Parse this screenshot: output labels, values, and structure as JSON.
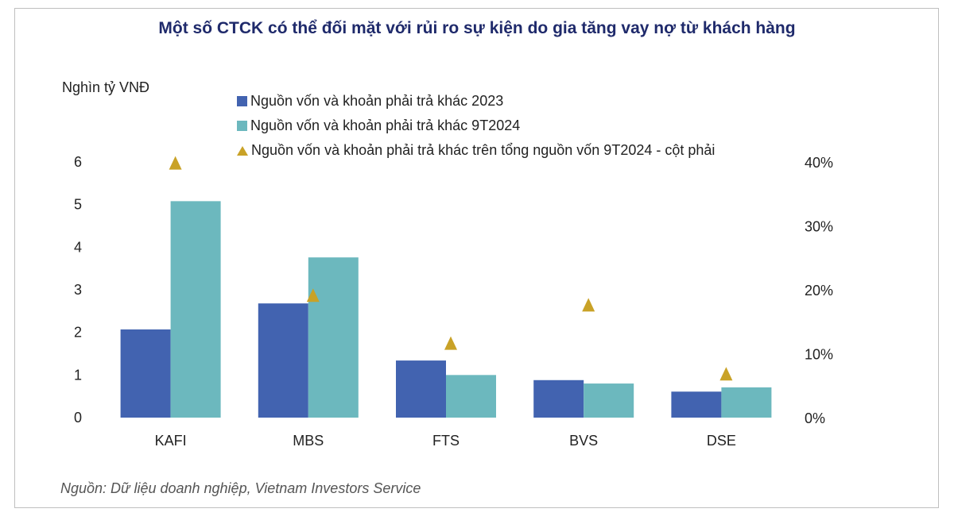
{
  "chart_data": {
    "type": "bar",
    "title": "Một số CTCK có thể đối mặt với rủi ro sự kiện do gia tăng vay nợ từ khách hàng",
    "ylabel": "Nghìn tỷ VNĐ",
    "xlabel": "",
    "categories": [
      "KAFI",
      "MBS",
      "FTS",
      "BVS",
      "DSE"
    ],
    "ylim": [
      0,
      6
    ],
    "yticks": [
      "0",
      "1",
      "2",
      "3",
      "4",
      "5",
      "6"
    ],
    "y2lim": [
      0,
      40
    ],
    "y2ticks": [
      "0%",
      "10%",
      "20%",
      "30%",
      "40%"
    ],
    "series": [
      {
        "name": "Nguồn vốn và khoản phải trả khác 2023",
        "type": "bar",
        "axis": "left",
        "color": "#4263b0",
        "values": [
          2.07,
          2.68,
          1.34,
          0.88,
          0.61
        ]
      },
      {
        "name": "Nguồn vốn và khoản phải trả khác 9T2024",
        "type": "bar",
        "axis": "left",
        "color": "#6cb8be",
        "values": [
          5.08,
          3.76,
          1.0,
          0.8,
          0.71
        ]
      },
      {
        "name": "Nguồn vốn và khoản phải trả khác trên tổng nguồn vốn 9T2024 - cột phải",
        "type": "scatter",
        "marker": "triangle",
        "axis": "right",
        "color": "#c9a227",
        "values": [
          39.8,
          19.1,
          11.6,
          17.6,
          6.8
        ]
      }
    ],
    "legend_position": "top-right",
    "grid": false,
    "source": "Nguồn: Dữ liệu doanh nghiệp, Vietnam Investors Service"
  }
}
